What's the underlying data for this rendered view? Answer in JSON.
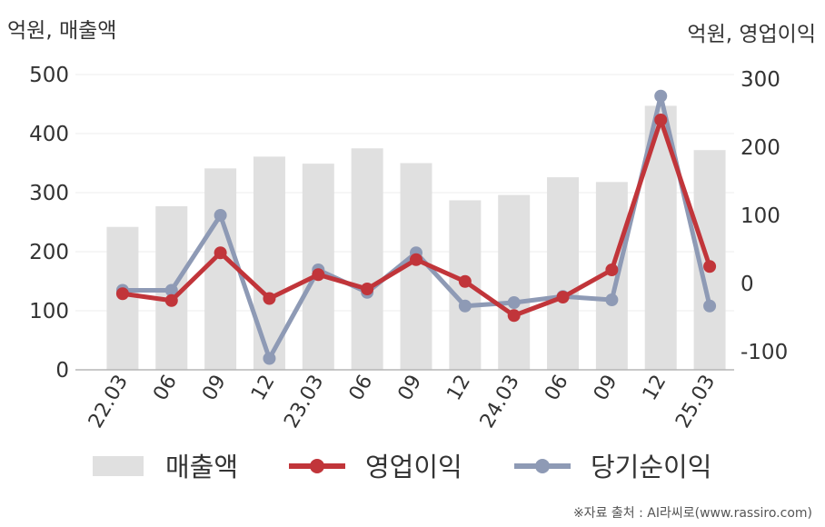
{
  "unit_left": "억원, 매출액",
  "unit_right": "억원, 영업이익",
  "source": "※자료 출처 : AI라씨로(www.rassiro.com)",
  "chart_data": {
    "type": "bar+line",
    "categories": [
      "22.03",
      "06",
      "09",
      "12",
      "23.03",
      "06",
      "09",
      "12",
      "24.03",
      "06",
      "09",
      "12",
      "25.03"
    ],
    "y_left": {
      "label": "억원, 매출액",
      "ticks": [
        0,
        100,
        200,
        300,
        400,
        500
      ],
      "lim": [
        0,
        500
      ]
    },
    "y_right": {
      "label": "억원, 영업이익",
      "ticks": [
        -100,
        0,
        100,
        200,
        300
      ],
      "lim": [
        -130,
        300
      ]
    },
    "series": [
      {
        "name": "매출액",
        "type": "bar",
        "axis": "left",
        "color": "#e0e0e0",
        "values": [
          242,
          277,
          341,
          361,
          349,
          375,
          350,
          287,
          296,
          326,
          318,
          447,
          372
        ]
      },
      {
        "name": "영업이익",
        "type": "line",
        "axis": "right",
        "color": "#c1353a",
        "values": [
          -15,
          -25,
          45,
          -22,
          13,
          -8,
          35,
          3,
          -47,
          -20,
          20,
          240,
          25
        ]
      },
      {
        "name": "당기순이익",
        "type": "line",
        "axis": "right",
        "color": "#8e9ab5",
        "values": [
          -10,
          -10,
          100,
          -110,
          20,
          -13,
          45,
          -33,
          -28,
          -19,
          -24,
          275,
          -33
        ]
      }
    ],
    "grid": true,
    "legend": "bottom"
  }
}
